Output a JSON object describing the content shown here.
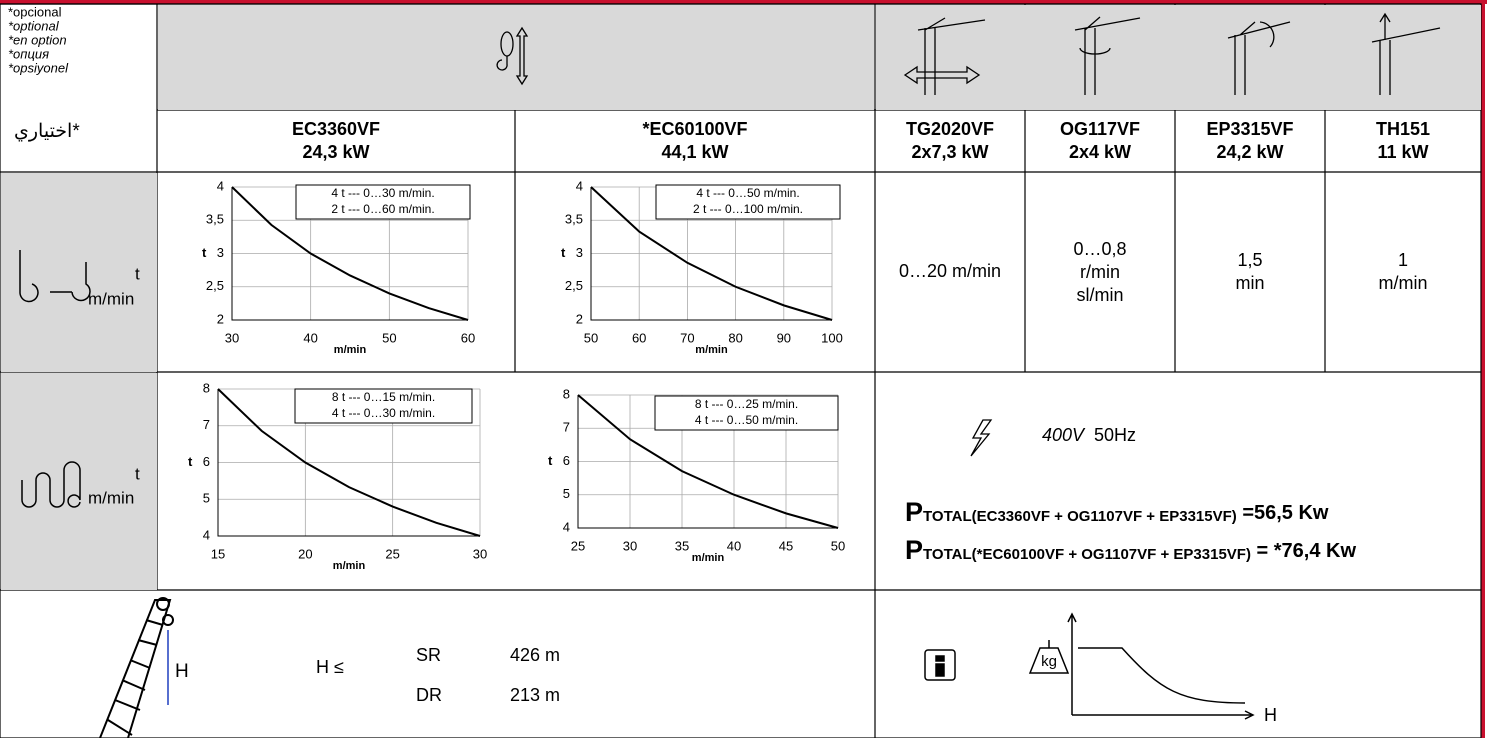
{
  "optional_labels": [
    "*opcional",
    "*optional",
    "*en option",
    "*опция",
    "*opsiyonel"
  ],
  "optional_label_arabic": "اختياري*",
  "columns": [
    {
      "model": "EC3360VF",
      "power": "24,3 kW"
    },
    {
      "model": "*EC60100VF",
      "power": "44,1 kW"
    },
    {
      "model": "TG2020VF",
      "power": "2x7,3 kW"
    },
    {
      "model": "OG117VF",
      "power": "2x4 kW"
    },
    {
      "model": "EP3315VF",
      "power": "24,2 kW"
    },
    {
      "model": "TH151",
      "power": "11 kW"
    }
  ],
  "row_units": [
    {
      "top": "t",
      "bottom": "m/min"
    },
    {
      "top": "t",
      "bottom": "m/min"
    }
  ],
  "speeds": [
    [
      "0…20 m/min"
    ],
    [
      "0…0,8",
      "r/min",
      "sl/min"
    ],
    [
      "1,5",
      "min"
    ],
    [
      "1",
      "m/min"
    ]
  ],
  "charts": [
    {
      "type": "line",
      "ylabel": "t",
      "xlabel": "m/min",
      "annotations": [
        "4 t --- 0…30 m/min.",
        "2 t --- 0…60 m/min."
      ],
      "x": [
        30,
        35,
        40,
        45,
        50,
        55,
        60
      ],
      "values": [
        4,
        3.43,
        3,
        2.67,
        2.4,
        2.18,
        2
      ],
      "xlim": [
        30,
        60
      ],
      "ylim": [
        2,
        4
      ],
      "xticks": [
        30,
        40,
        50,
        60
      ],
      "yticks": [
        2,
        {
          "value": 2.5,
          "label": "2,5"
        },
        3,
        {
          "value": 3.5,
          "label": "3,5"
        },
        4
      ]
    },
    {
      "type": "line",
      "ylabel": "t",
      "xlabel": "m/min",
      "annotations": [
        "4 t --- 0…50 m/min.",
        "2 t --- 0…100 m/min."
      ],
      "x": [
        50,
        60,
        70,
        80,
        90,
        100
      ],
      "values": [
        4,
        3.33,
        2.86,
        2.5,
        2.22,
        2
      ],
      "xlim": [
        50,
        100
      ],
      "ylim": [
        2,
        4
      ],
      "xticks": [
        50,
        60,
        70,
        80,
        90,
        100
      ],
      "yticks": [
        2,
        {
          "value": 2.5,
          "label": "2,5"
        },
        3,
        {
          "value": 3.5,
          "label": "3,5"
        },
        4
      ]
    },
    {
      "type": "line",
      "ylabel": "t",
      "xlabel": "m/min",
      "annotations": [
        "8 t --- 0…15 m/min.",
        "4 t --- 0…30 m/min."
      ],
      "x": [
        15,
        17.5,
        20,
        22.5,
        25,
        27.5,
        30
      ],
      "values": [
        8,
        6.86,
        6,
        5.33,
        4.8,
        4.36,
        4
      ],
      "xlim": [
        15,
        30
      ],
      "ylim": [
        4,
        8
      ],
      "xticks": [
        15,
        20,
        25,
        30
      ],
      "yticks": [
        4,
        5,
        6,
        7,
        8
      ]
    },
    {
      "type": "line",
      "ylabel": "t",
      "xlabel": "m/min",
      "annotations": [
        "8 t --- 0…25 m/min.",
        "4 t --- 0…50 m/min."
      ],
      "x": [
        25,
        30,
        35,
        40,
        45,
        50
      ],
      "values": [
        8,
        6.67,
        5.71,
        5,
        4.44,
        4
      ],
      "xlim": [
        25,
        50
      ],
      "ylim": [
        4,
        8
      ],
      "xticks": [
        25,
        30,
        35,
        40,
        45,
        50
      ],
      "yticks": [
        4,
        5,
        6,
        7,
        8
      ]
    }
  ],
  "supply": {
    "voltage": "400V",
    "frequency": "50Hz"
  },
  "power_totals": [
    {
      "symbol": "P",
      "subscript": "TOTAL(EC3360VF + OG1107VF + EP3315VF)",
      "result": " =56,5 Kw"
    },
    {
      "symbol": "P",
      "subscript": "TOTAL(*EC60100VF + OG1107VF + EP3315VF)",
      "result": " = *76,4 Kw"
    }
  ],
  "height": {
    "symbol": "H",
    "condition": "H ≤",
    "rows": [
      {
        "reeving": "SR",
        "value": "426 m"
      },
      {
        "reeving": "DR",
        "value": "213 m"
      }
    ]
  },
  "load_diagram": {
    "weight": "kg",
    "axis": "H"
  }
}
